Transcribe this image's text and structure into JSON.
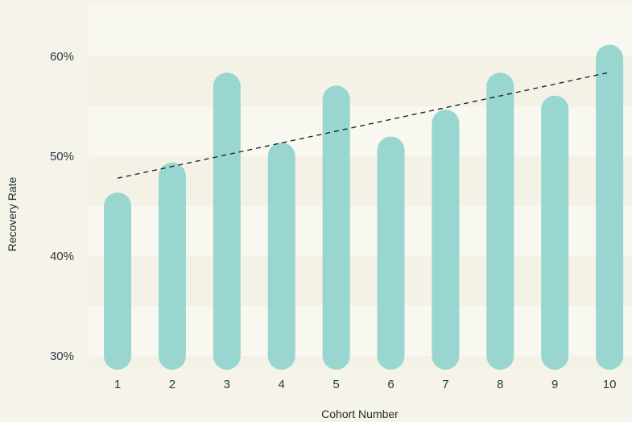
{
  "colors": {
    "background": "#f5f3ea",
    "band_light": "#f8f8f1",
    "band_dark": "#f4f1e6",
    "bar": "#98d6cf",
    "trendline": "#1a1a1a",
    "text": "#2e3a3f"
  },
  "chart_data": {
    "type": "bar",
    "title": "",
    "xlabel": "Cohort Number",
    "ylabel": "Recovery Rate",
    "categories": [
      "1",
      "2",
      "3",
      "4",
      "5",
      "6",
      "7",
      "8",
      "9",
      "10"
    ],
    "values": [
      45.0,
      48.0,
      57.0,
      50.0,
      55.7,
      50.6,
      53.3,
      57.0,
      54.7,
      59.8
    ],
    "baseline": 30,
    "ylim": [
      30,
      60
    ],
    "yticks": [
      30,
      40,
      50,
      60
    ],
    "ytick_labels": [
      "30%",
      "40%",
      "50%",
      "60%"
    ],
    "trendline": {
      "style": "dashed",
      "x_start": "1",
      "y_start": 47.8,
      "x_end": "10",
      "y_end": 58.4
    },
    "grid": "alternating horizontal bands",
    "legend": "none"
  }
}
